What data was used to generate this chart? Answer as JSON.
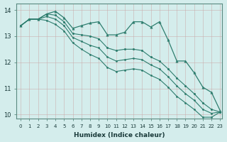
{
  "xlabel": "Humidex (Indice chaleur)",
  "background_color": "#d4edec",
  "line_color": "#2e7d6e",
  "grid_color": "#b8d8d4",
  "xlim": [
    -0.5,
    23.2
  ],
  "ylim": [
    9.85,
    14.25
  ],
  "x": [
    0,
    1,
    2,
    3,
    4,
    5,
    6,
    7,
    8,
    9,
    10,
    11,
    12,
    13,
    14,
    15,
    16,
    17,
    18,
    19,
    20,
    21,
    22,
    23
  ],
  "y_wavy": [
    13.4,
    13.65,
    13.65,
    13.85,
    13.95,
    13.7,
    13.3,
    13.4,
    13.5,
    13.55,
    13.05,
    13.05,
    13.15,
    13.55,
    13.55,
    13.35,
    13.55,
    12.85,
    12.05,
    12.05,
    11.6,
    11.05,
    10.85,
    10.15
  ],
  "y_line1": [
    13.4,
    13.65,
    13.65,
    13.85,
    13.8,
    13.55,
    13.1,
    13.05,
    13.0,
    12.9,
    12.55,
    12.45,
    12.5,
    12.5,
    12.45,
    12.2,
    12.05,
    11.75,
    11.4,
    11.1,
    10.8,
    10.45,
    10.2,
    10.1
  ],
  "y_line2": [
    13.4,
    13.65,
    13.65,
    13.75,
    13.65,
    13.4,
    12.95,
    12.8,
    12.65,
    12.55,
    12.2,
    12.05,
    12.1,
    12.15,
    12.1,
    11.9,
    11.75,
    11.45,
    11.1,
    10.8,
    10.55,
    10.2,
    10.05,
    10.1
  ],
  "y_line3": [
    13.4,
    13.65,
    13.65,
    13.6,
    13.45,
    13.2,
    12.75,
    12.5,
    12.3,
    12.15,
    11.8,
    11.65,
    11.7,
    11.75,
    11.7,
    11.5,
    11.35,
    11.05,
    10.7,
    10.45,
    10.2,
    9.9,
    9.9,
    10.1
  ]
}
